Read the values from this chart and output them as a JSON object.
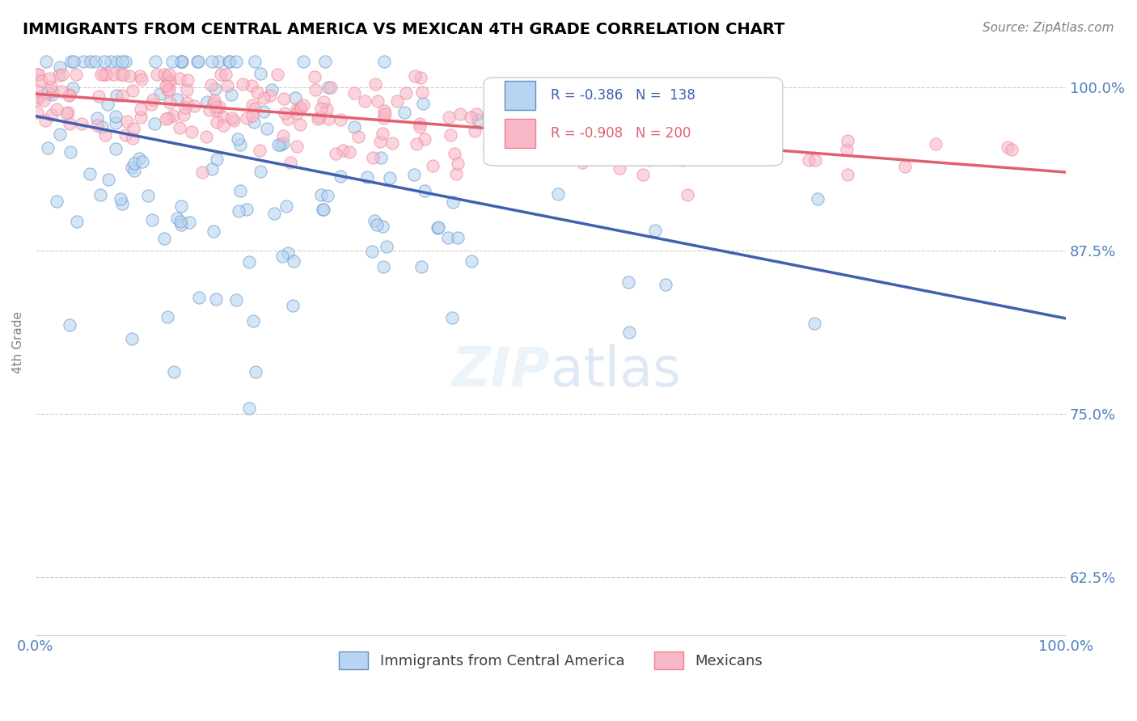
{
  "title": "IMMIGRANTS FROM CENTRAL AMERICA VS MEXICAN 4TH GRADE CORRELATION CHART",
  "source": "Source: ZipAtlas.com",
  "xlabel": "",
  "ylabel": "4th Grade",
  "xlim": [
    0.0,
    1.0
  ],
  "ylim": [
    0.58,
    1.03
  ],
  "yticks": [
    0.625,
    0.75,
    0.875,
    1.0
  ],
  "ytick_labels": [
    "62.5%",
    "75.0%",
    "87.5%",
    "100.0%"
  ],
  "xtick_labels": [
    "0.0%",
    "100.0%"
  ],
  "legend_entries": [
    {
      "label": "R = -0.386   N =  138",
      "color": "#a8c8e8"
    },
    {
      "label": "R = -0.908   N = 200",
      "color": "#f0a0b0"
    }
  ],
  "blue_color": "#6090c8",
  "pink_color": "#f08090",
  "blue_scatter_color": "#b8d4f0",
  "pink_scatter_color": "#f8b8c8",
  "blue_line_color": "#4060b0",
  "pink_line_color": "#e06070",
  "background_color": "#ffffff",
  "grid_color": "#cccccc",
  "axis_label_color": "#5080c0",
  "title_color": "#000000",
  "source_color": "#808080",
  "watermark_text": "ZIPatlas",
  "blue_R": -0.386,
  "blue_N": 138,
  "pink_R": -0.908,
  "pink_N": 200,
  "blue_intercept": 0.978,
  "blue_slope": -0.155,
  "pink_intercept": 0.995,
  "pink_slope": -0.06,
  "seed_blue": 42,
  "seed_pink": 123
}
